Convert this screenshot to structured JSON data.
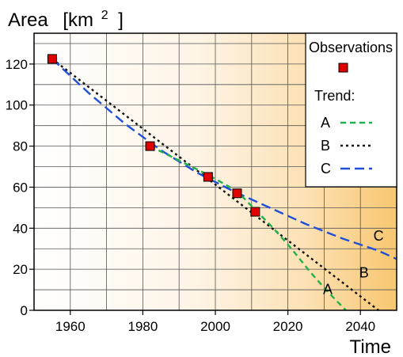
{
  "chart_data": {
    "type": "line",
    "ylabel": "Area",
    "yunit": "[km",
    "yunit_sup": "2",
    "yunit_close": "]",
    "xlabel": "Time",
    "xlim": [
      1950,
      2050
    ],
    "ylim": [
      0,
      135
    ],
    "xticks": [
      1960,
      1980,
      2000,
      2020,
      2040
    ],
    "yticks": [
      0,
      20,
      40,
      60,
      80,
      100,
      120
    ],
    "grid": true,
    "legend": {
      "position": "top-right",
      "observations_label": "Observations",
      "trend_label": "Trend:"
    },
    "observations": {
      "color": "#e00000",
      "points": [
        {
          "x": 1955,
          "y": 122.5
        },
        {
          "x": 1982,
          "y": 80
        },
        {
          "x": 1998,
          "y": 65
        },
        {
          "x": 2006,
          "y": 57
        },
        {
          "x": 2011,
          "y": 48
        }
      ]
    },
    "series": [
      {
        "name": "A",
        "color": "#22b04a",
        "dash": "7,5",
        "x": [
          1982,
          1990,
          1998,
          2006,
          2011,
          2016,
          2021,
          2026,
          2031,
          2036
        ],
        "y": [
          80,
          73,
          66,
          58,
          49,
          40,
          30,
          19,
          9,
          0
        ]
      },
      {
        "name": "B",
        "color": "#111111",
        "dash": "3,4",
        "x": [
          1955,
          2045
        ],
        "y": [
          122.5,
          0
        ]
      },
      {
        "name": "C",
        "color": "#1f4fd6",
        "dash": "12,6",
        "x": [
          1955,
          1965,
          1975,
          1985,
          1995,
          2005,
          2015,
          2025,
          2035,
          2045,
          2050
        ],
        "y": [
          122.5,
          106,
          91,
          78,
          67,
          58,
          50,
          42,
          35,
          29,
          25
        ]
      }
    ],
    "annotations": [
      {
        "text": "A",
        "x": 2031,
        "y": 8
      },
      {
        "text": "B",
        "x": 2041,
        "y": 16
      },
      {
        "text": "C",
        "x": 2045,
        "y": 34
      }
    ]
  }
}
